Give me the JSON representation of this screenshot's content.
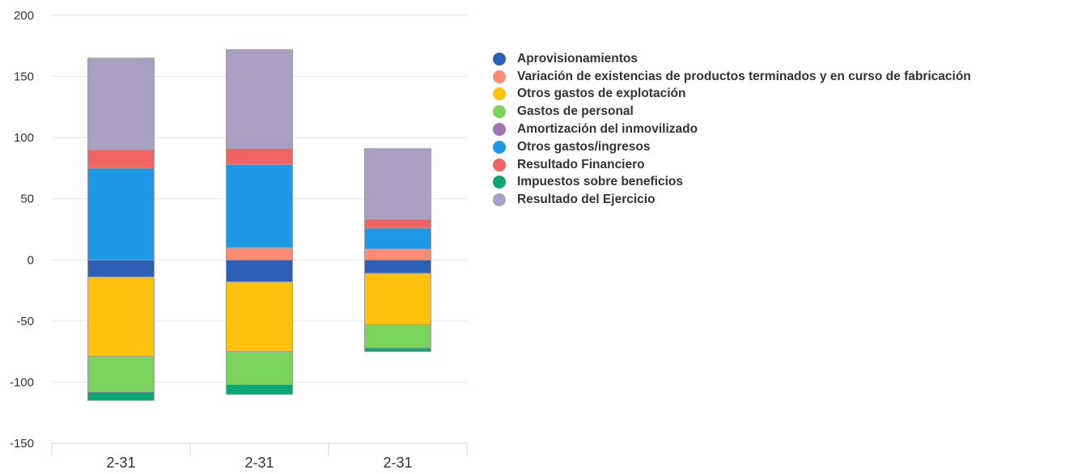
{
  "chart_data": {
    "type": "bar",
    "stacked": true,
    "categories": [
      "2-31",
      "2-31",
      "2-31"
    ],
    "ylim": [
      -150,
      200
    ],
    "yticks": [
      200,
      150,
      100,
      50,
      0,
      -50,
      -100,
      -150
    ],
    "grid": true,
    "legend_position": "right",
    "series": [
      {
        "name": "Aprovisionamientos",
        "color": "#2e5fb7",
        "values": [
          -14,
          -18,
          -11
        ]
      },
      {
        "name": "Variación de existencias de productos terminados y en curso de fabricación",
        "color": "#fd8c74",
        "values": [
          0,
          10,
          9
        ]
      },
      {
        "name": "Otros gastos de explotación",
        "color": "#ffc10c",
        "values": [
          -65,
          -57,
          -42
        ]
      },
      {
        "name": "Gastos de personal",
        "color": "#7ad35a",
        "values": [
          -29,
          -27,
          -19
        ]
      },
      {
        "name": "Amortización del inmovilizado",
        "color": "#a075ae",
        "values": [
          0,
          0,
          0
        ]
      },
      {
        "name": "Otros gastos/ingresos",
        "color": "#1f98e6",
        "values": [
          75,
          68,
          17
        ]
      },
      {
        "name": "Resultado Financiero",
        "color": "#ef6461",
        "values": [
          15,
          13,
          7
        ]
      },
      {
        "name": "Impuestos sobre beneficios",
        "color": "#0ca574",
        "values": [
          -7,
          -8,
          -3
        ]
      },
      {
        "name": "Resultado del Ejercicio",
        "color": "#aaa0c3",
        "values": [
          75,
          81,
          58
        ]
      }
    ]
  }
}
